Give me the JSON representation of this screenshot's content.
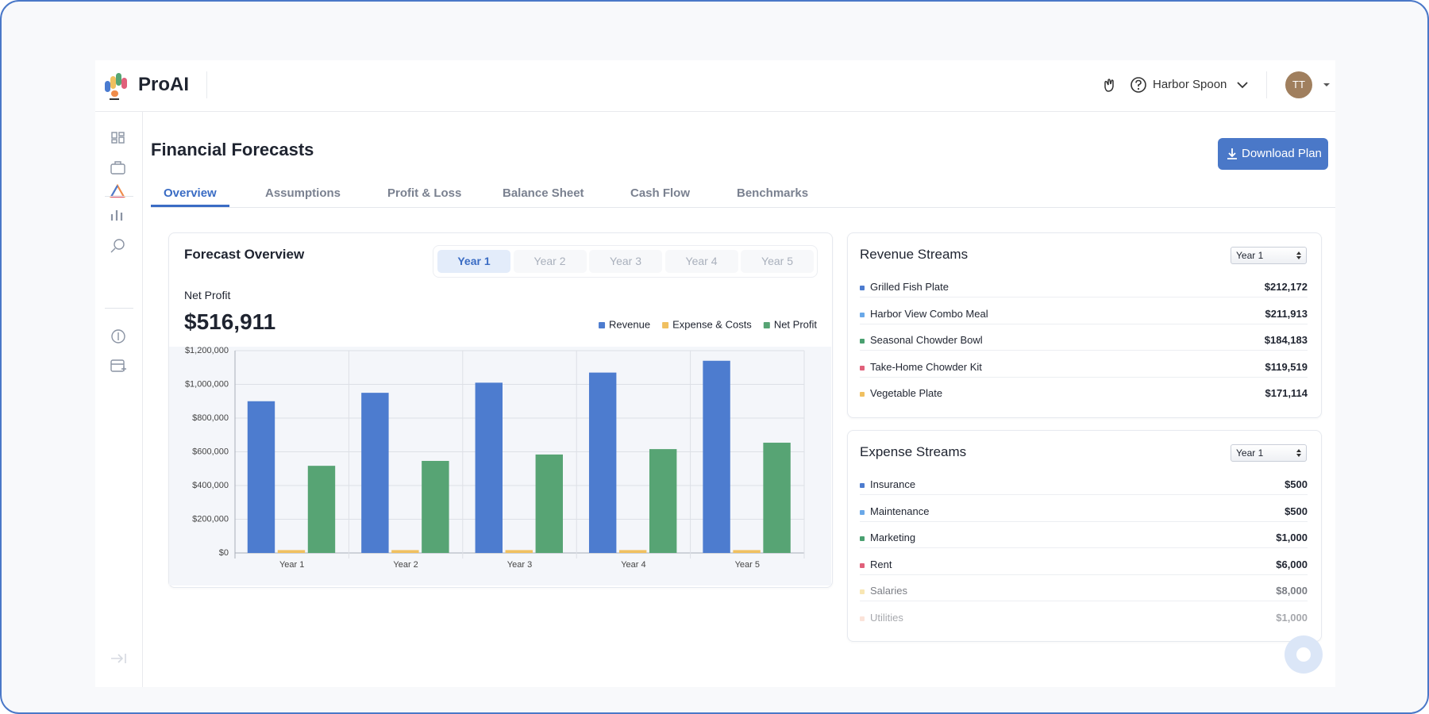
{
  "header": {
    "brand": "ProAI",
    "account": "Harbor Spoon",
    "avatar": "TT"
  },
  "page": {
    "title": "Financial Forecasts",
    "action": "Download Plan",
    "tabs": [
      "Overview",
      "Assumptions",
      "Profit & Loss",
      "Balance Sheet",
      "Cash Flow",
      "Benchmarks"
    ],
    "active_tab": 0
  },
  "forecast": {
    "title": "Forecast Overview",
    "periods": [
      "Year 1",
      "Year 2",
      "Year 3",
      "Year 4",
      "Year 5"
    ],
    "selected_period": 0,
    "metric_label": "Net Profit",
    "metric_value": "$516,911"
  },
  "chart_data": {
    "type": "bar",
    "categories": [
      "Year 1",
      "Year 2",
      "Year 3",
      "Year 4",
      "Year 5"
    ],
    "series": [
      {
        "name": "Revenue",
        "color": "#4d7ccf",
        "values": [
          900000,
          950000,
          1010000,
          1070000,
          1140000
        ]
      },
      {
        "name": "Expense & Costs",
        "color": "#f0c060",
        "values": [
          17000,
          17000,
          17000,
          17000,
          17000
        ]
      },
      {
        "name": "Net Profit",
        "color": "#57a474",
        "values": [
          516911,
          546000,
          584000,
          616000,
          654000
        ]
      }
    ],
    "ylim": [
      0,
      1200000
    ],
    "yticks": [
      {
        "value": 0,
        "label": "$0"
      },
      {
        "value": 200000,
        "label": "$200,000"
      },
      {
        "value": 400000,
        "label": "$400,000"
      },
      {
        "value": 600000,
        "label": "$600,000"
      },
      {
        "value": 800000,
        "label": "$800,000"
      },
      {
        "value": 1000000,
        "label": "$1,000,000"
      },
      {
        "value": 1200000,
        "label": "$1,200,000"
      }
    ],
    "grid": true,
    "legend": "top-right"
  },
  "revenue_streams": {
    "title": "Revenue Streams",
    "period": "Year 1",
    "items": [
      {
        "name": "Grilled Fish Plate",
        "value": "$212,172",
        "color": "#4d7ccf"
      },
      {
        "name": "Harbor View Combo Meal",
        "value": "$211,913",
        "color": "#6aa8e8"
      },
      {
        "name": "Seasonal Chowder Bowl",
        "value": "$184,183",
        "color": "#4aa070"
      },
      {
        "name": "Take-Home Chowder Kit",
        "value": "$119,519",
        "color": "#e0607a"
      },
      {
        "name": "Vegetable Plate",
        "value": "$171,114",
        "color": "#f0c060"
      }
    ]
  },
  "expense_streams": {
    "title": "Expense Streams",
    "period": "Year 1",
    "items": [
      {
        "name": "Insurance",
        "value": "$500",
        "color": "#4d7ccf"
      },
      {
        "name": "Maintenance",
        "value": "$500",
        "color": "#6aa8e8"
      },
      {
        "name": "Marketing",
        "value": "$1,000",
        "color": "#4aa070"
      },
      {
        "name": "Rent",
        "value": "$6,000",
        "color": "#e0607a"
      },
      {
        "name": "Salaries",
        "value": "$8,000",
        "color": "#f3d680"
      },
      {
        "name": "Utilities",
        "value": "$1,000",
        "color": "#f4b8a0"
      }
    ]
  }
}
